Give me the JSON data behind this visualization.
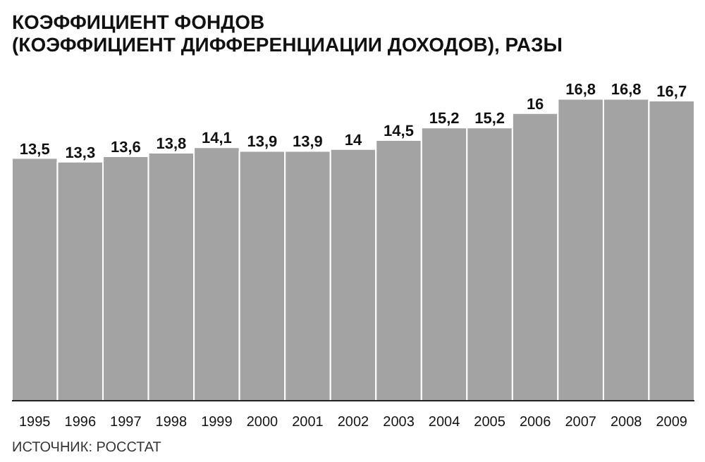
{
  "chart_data": {
    "type": "bar",
    "title": "КОЭФФИЦИЕНТ ФОНДОВ\n(КОЭФФИЦИЕНТ ДИФФЕРЕНЦИАЦИИ ДОХОДОВ), РАЗЫ",
    "categories": [
      "1995",
      "1996",
      "1997",
      "1998",
      "1999",
      "2000",
      "2001",
      "2002",
      "2003",
      "2004",
      "2005",
      "2006",
      "2007",
      "2008",
      "2009"
    ],
    "values": [
      13.5,
      13.3,
      13.6,
      13.8,
      14.1,
      13.9,
      13.9,
      14,
      14.5,
      15.2,
      15.2,
      16,
      16.8,
      16.8,
      16.7
    ],
    "value_labels": [
      "13,5",
      "13,3",
      "13,6",
      "13,8",
      "14,1",
      "13,9",
      "13,9",
      "14",
      "14,5",
      "15,2",
      "15,2",
      "16",
      "16,8",
      "16,8",
      "16,7"
    ],
    "color": "#a3a3a3",
    "annotations": [
      "ИСТОЧНИК: РОССТАТ"
    ]
  }
}
